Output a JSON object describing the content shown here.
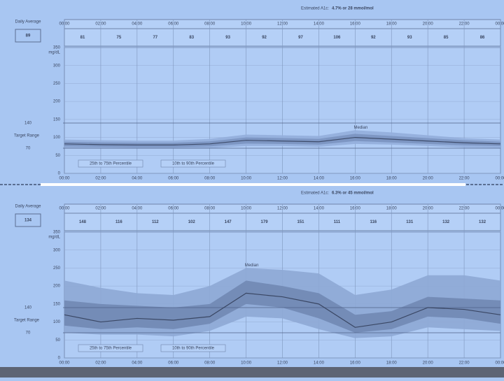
{
  "chart_data": [
    {
      "type": "agp",
      "title_label": "Estimated A1c:",
      "title": "4.7% or 28 mmol/mol",
      "daily_average_label": "Daily Average",
      "daily_average": 89,
      "bin_values": [
        81,
        75,
        77,
        83,
        93,
        92,
        97,
        106,
        92,
        93,
        85,
        86
      ],
      "x": [
        0,
        2,
        4,
        6,
        8,
        10,
        12,
        14,
        16,
        18,
        20,
        22,
        24
      ],
      "xlim": [
        0,
        24
      ],
      "xticks": [
        {
          "value": 0,
          "label": "00:00"
        },
        {
          "value": 2,
          "label": "02:00"
        },
        {
          "value": 4,
          "label": "04:00"
        },
        {
          "value": 6,
          "label": "06:00"
        },
        {
          "value": 8,
          "label": "08:00"
        },
        {
          "value": 10,
          "label": "10:00"
        },
        {
          "value": 12,
          "label": "12:00"
        },
        {
          "value": 14,
          "label": "14:00"
        },
        {
          "value": 16,
          "label": "16:00"
        },
        {
          "value": 18,
          "label": "18:00"
        },
        {
          "value": 20,
          "label": "20:00"
        },
        {
          "value": 22,
          "label": "22:00"
        },
        {
          "value": 24,
          "label": "00:00"
        }
      ],
      "ylim": [
        0,
        350
      ],
      "yticks": [
        0,
        50,
        100,
        150,
        200,
        250,
        300,
        350
      ],
      "y_unit": "mg/dL",
      "target_range": {
        "label": "Target Range",
        "values": [
          70,
          140
        ]
      },
      "bands": [
        {
          "name": "10th to 90th Percentile",
          "color": "#93aedb",
          "lower": [
            70,
            70,
            69,
            69,
            70,
            76,
            76,
            74,
            82,
            80,
            76,
            72,
            71
          ],
          "upper": [
            94,
            92,
            91,
            91,
            96,
            108,
            106,
            104,
            120,
            114,
            106,
            98,
            94
          ]
        },
        {
          "name": "25th to 75th Percentile",
          "color": "#7a93c0",
          "lower": [
            75,
            74,
            73,
            73,
            75,
            83,
            82,
            80,
            90,
            86,
            82,
            78,
            76
          ],
          "upper": [
            88,
            86,
            85,
            85,
            89,
            100,
            98,
            96,
            110,
            104,
            98,
            92,
            88
          ]
        }
      ],
      "series": [
        {
          "name": "Median",
          "color": "#3e4c6b",
          "values": [
            82,
            80,
            79,
            79,
            82,
            92,
            90,
            88,
            100,
            95,
            90,
            85,
            82
          ]
        }
      ]
    },
    {
      "type": "agp",
      "title_label": "Estimated A1c:",
      "title": "6.3% or 45 mmol/mol",
      "daily_average_label": "Daily Average",
      "daily_average": 134,
      "bin_values": [
        148,
        116,
        112,
        102,
        147,
        179,
        151,
        111,
        116,
        131,
        132,
        132
      ],
      "x": [
        0,
        2,
        4,
        6,
        8,
        10,
        12,
        14,
        16,
        18,
        20,
        22,
        24
      ],
      "xlim": [
        0,
        24
      ],
      "xticks": [
        {
          "value": 0,
          "label": "00:00"
        },
        {
          "value": 2,
          "label": "02:00"
        },
        {
          "value": 4,
          "label": "04:00"
        },
        {
          "value": 6,
          "label": "06:00"
        },
        {
          "value": 8,
          "label": "08:00"
        },
        {
          "value": 10,
          "label": "10:00"
        },
        {
          "value": 12,
          "label": "12:00"
        },
        {
          "value": 14,
          "label": "14:00"
        },
        {
          "value": 16,
          "label": "16:00"
        },
        {
          "value": 18,
          "label": "18:00"
        },
        {
          "value": 20,
          "label": "20:00"
        },
        {
          "value": 22,
          "label": "22:00"
        },
        {
          "value": 24,
          "label": "00:00"
        }
      ],
      "ylim": [
        0,
        350
      ],
      "yticks": [
        0,
        50,
        100,
        150,
        200,
        250,
        300,
        350
      ],
      "y_unit": "mg/dL",
      "target_range": {
        "label": "Target Range",
        "values": [
          70,
          140
        ]
      },
      "bands": [
        {
          "name": "10th to 90th Percentile",
          "color": "#8ea8d5",
          "lower": [
            70,
            65,
            65,
            60,
            75,
            115,
            110,
            80,
            55,
            60,
            85,
            80,
            75
          ],
          "upper": [
            215,
            195,
            180,
            175,
            200,
            250,
            245,
            235,
            175,
            190,
            230,
            230,
            215
          ]
        },
        {
          "name": "25th to 75th Percentile",
          "color": "#7188b4",
          "lower": [
            90,
            80,
            85,
            80,
            95,
            150,
            140,
            110,
            70,
            80,
            115,
            110,
            95
          ],
          "upper": [
            160,
            150,
            145,
            140,
            150,
            215,
            200,
            180,
            120,
            130,
            170,
            165,
            160
          ]
        }
      ],
      "series": [
        {
          "name": "Median",
          "color": "#3a4764",
          "values": [
            120,
            100,
            110,
            105,
            115,
            180,
            170,
            150,
            85,
            100,
            140,
            135,
            120
          ]
        }
      ]
    }
  ]
}
